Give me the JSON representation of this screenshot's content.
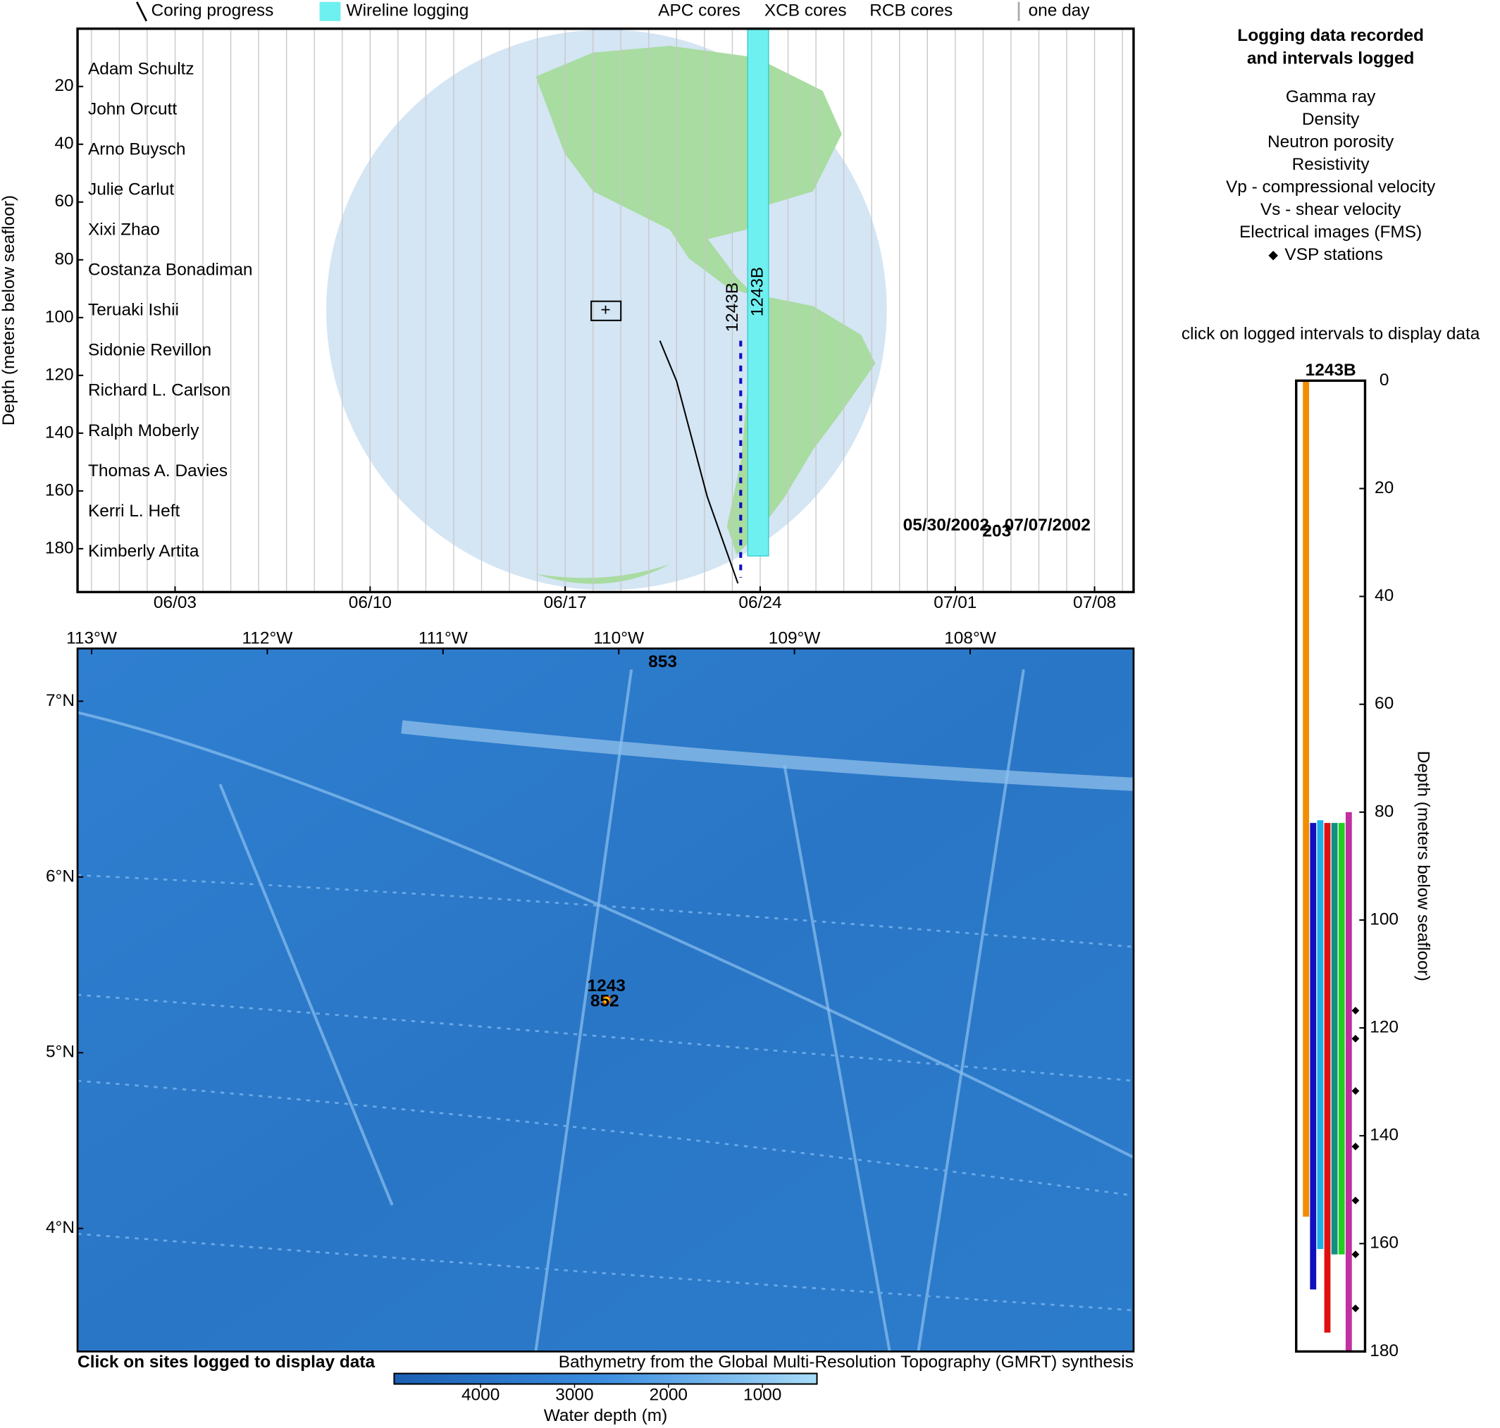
{
  "timeline": {
    "legend": {
      "coring": "Coring progress",
      "wireline": "Wireline logging",
      "apc": "APC cores",
      "xcb": "XCB cores",
      "rcb": "RCB cores",
      "one_day": "one day"
    },
    "colors": {
      "coring": "#000000",
      "wireline": "#6ff0f0",
      "apc": "#e01010",
      "xcb": "#10a010",
      "rcb": "#1010c0",
      "grid": "#c8c8c8",
      "one_day": "#aaaaaa"
    },
    "ylabel": "Depth (meters below seafloor)",
    "ylim": [
      0,
      195
    ],
    "yticks": [
      20,
      40,
      60,
      80,
      100,
      120,
      140,
      160,
      180
    ],
    "xlim": [
      150.5,
      188.4
    ],
    "xticks": [
      {
        "value": 154,
        "label": "06/03"
      },
      {
        "value": 161,
        "label": "06/10"
      },
      {
        "value": 168,
        "label": "06/17"
      },
      {
        "value": 175,
        "label": "06/24"
      },
      {
        "value": 182,
        "label": "07/01"
      },
      {
        "value": 187,
        "label": "07/08"
      }
    ],
    "names": [
      "Adam Schultz",
      "John Orcutt",
      "Arno Buysch",
      "Julie Carlut",
      "Xixi Zhao",
      "Costanza Bonadiman",
      "Teruaki Ishii",
      "Sidonie Revillon",
      "Richard L. Carlson",
      "Ralph Moberly",
      "Thomas A. Davies",
      "Kerri L. Heft",
      "Kimberly Artita"
    ],
    "expedition": "203",
    "date_range": "05/30/2002 - 07/07/2002",
    "coring": {
      "hole": "1243B",
      "x": [
        171.4,
        172.0,
        173.1,
        174.2
      ],
      "depth": [
        108,
        122,
        162,
        192
      ]
    },
    "rcb": {
      "x": 174.3,
      "top": 108,
      "bottom": 190
    },
    "wireline": {
      "hole": "1243B",
      "start": 174.55,
      "end": 175.3,
      "top": 0,
      "bottom": 182.5
    }
  },
  "map": {
    "xlim": [
      -113.08,
      -107.07
    ],
    "ylim": [
      3.3,
      7.3
    ],
    "xticks": [
      {
        "value": -113,
        "label": "113°W"
      },
      {
        "value": -112,
        "label": "112°W"
      },
      {
        "value": -111,
        "label": "111°W"
      },
      {
        "value": -110,
        "label": "110°W"
      },
      {
        "value": -109,
        "label": "109°W"
      },
      {
        "value": -108,
        "label": "108°W"
      }
    ],
    "yticks": [
      {
        "value": 7,
        "label": "7°N"
      },
      {
        "value": 6,
        "label": "6°N"
      },
      {
        "value": 5,
        "label": "5°N"
      },
      {
        "value": 4,
        "label": "4°N"
      }
    ],
    "sites": [
      {
        "label": "853",
        "lon": -109.75,
        "lat": 7.22,
        "color": "#ffffff"
      },
      {
        "label": "1243",
        "lon": -110.07,
        "lat": 5.3,
        "color": "#e01010"
      },
      {
        "label": "852",
        "lon": -110.08,
        "lat": 5.3,
        "color": "#ffffff"
      }
    ],
    "caption_left": "Click on sites logged to display data",
    "caption_right": "Bathymetry from the Global Multi-Resolution Topography (GMRT) synthesis",
    "colorbar": {
      "label": "Water depth (m)",
      "clim": [
        4920,
        420
      ],
      "ticks": [
        4000,
        3000,
        2000,
        1000
      ]
    }
  },
  "log": {
    "title": [
      "Logging data recorded",
      "and intervals logged"
    ],
    "instruction": "click on logged intervals to display data",
    "hole": "1243B",
    "ylabel": "Depth (meters below seafloor)",
    "ylim": [
      0,
      180
    ],
    "yticks": [
      0,
      20,
      40,
      60,
      80,
      100,
      120,
      140,
      160,
      180
    ],
    "logs": [
      {
        "name": "Gamma ray",
        "color": "#f28c00",
        "top": 0,
        "bottom": 155
      },
      {
        "name": "Density",
        "color": "#1010c0",
        "top": 82,
        "bottom": 168.5
      },
      {
        "name": "Neutron porosity",
        "color": "#1ab0e8",
        "top": 81.5,
        "bottom": 161
      },
      {
        "name": "Resistivity",
        "color": "#e01010",
        "top": 82,
        "bottom": 176.5
      },
      {
        "name": "Vp - compressional velocity",
        "color": "#109080",
        "top": 82,
        "bottom": 162
      },
      {
        "name": "Vs - shear velocity",
        "color": "#20d020",
        "top": 82,
        "bottom": 162
      },
      {
        "name": "Electrical images (FMS)",
        "color": "#c030a0",
        "top": 80,
        "bottom": 180
      }
    ],
    "vsp": {
      "name": "VSP stations",
      "depths": [
        116.8,
        122,
        131.7,
        142,
        152,
        162,
        172
      ]
    }
  }
}
